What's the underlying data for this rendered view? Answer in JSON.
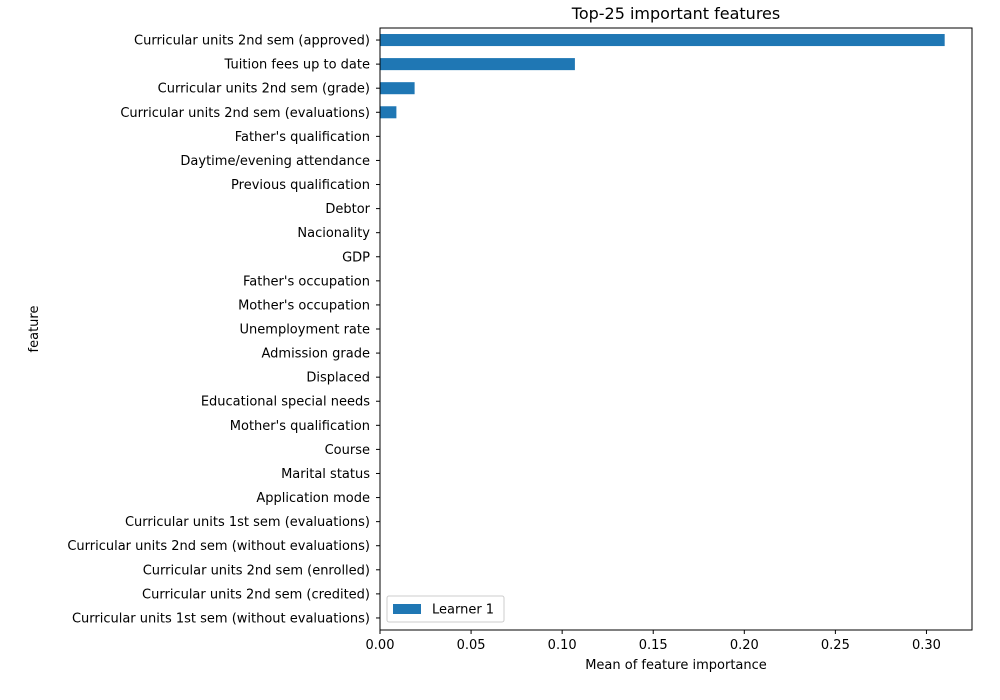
{
  "chart_data": {
    "type": "bar",
    "orientation": "horizontal",
    "title": "Top-25 important features",
    "xlabel": "Mean of feature importance",
    "ylabel": "feature",
    "xlim": [
      0,
      0.325
    ],
    "xticks": [
      0.0,
      0.05,
      0.1,
      0.15,
      0.2,
      0.25,
      0.3
    ],
    "xtick_labels": [
      "0.00",
      "0.05",
      "0.10",
      "0.15",
      "0.20",
      "0.25",
      "0.30"
    ],
    "grid": false,
    "legend_position": "lower-left",
    "categories": [
      "Curricular units 2nd sem (approved)",
      "Tuition fees up to date",
      "Curricular units 2nd sem (grade)",
      "Curricular units 2nd sem (evaluations)",
      "Father's qualification",
      "Daytime/evening attendance",
      "Previous qualification",
      "Debtor",
      "Nacionality",
      "GDP",
      "Father's occupation",
      "Mother's occupation",
      "Unemployment rate",
      "Admission grade",
      "Displaced",
      "Educational special needs",
      "Mother's qualification",
      "Course",
      "Marital status",
      "Application mode",
      "Curricular units 1st sem (evaluations)",
      "Curricular units 2nd sem (without evaluations)",
      "Curricular units 2nd sem (enrolled)",
      "Curricular units 2nd sem (credited)",
      "Curricular units 1st sem (without evaluations)"
    ],
    "series": [
      {
        "name": "Learner 1",
        "color": "#1f77b4",
        "values": [
          0.31,
          0.107,
          0.019,
          0.009,
          0,
          0,
          0,
          0,
          0,
          0,
          0,
          0,
          0,
          0,
          0,
          0,
          0,
          0,
          0,
          0,
          0,
          0,
          0,
          0,
          0
        ]
      }
    ]
  }
}
